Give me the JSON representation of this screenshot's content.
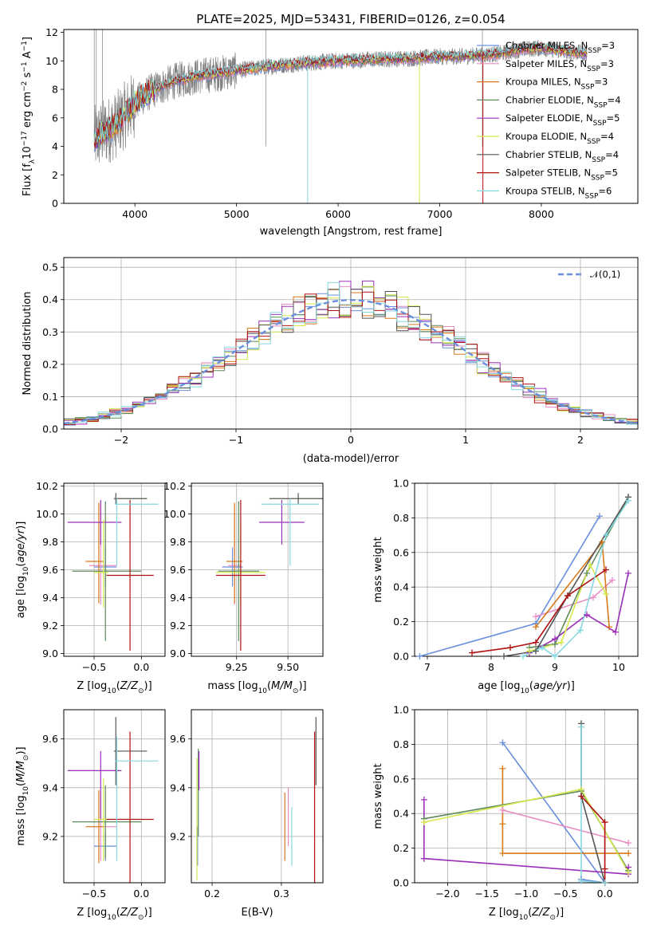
{
  "figure": {
    "title": "PLATE=2025, MJD=53431, FIBERID=0126, z=0.054"
  },
  "models": [
    {
      "name": "Chabrier MILES",
      "nssp": 3,
      "color": "#6a8fdc"
    },
    {
      "name": "Salpeter MILES",
      "nssp": 3,
      "color": "#e88cc4"
    },
    {
      "name": "Kroupa MILES",
      "nssp": 3,
      "color": "#d8791a"
    },
    {
      "name": "Chabrier ELODIE",
      "nssp": 4,
      "color": "#5c8a5c"
    },
    {
      "name": "Salpeter ELODIE",
      "nssp": 5,
      "color": "#9b30b8"
    },
    {
      "name": "Kroupa ELODIE",
      "nssp": 4,
      "color": "#d6e84a"
    },
    {
      "name": "Chabrier STELIB",
      "nssp": 4,
      "color": "#555555"
    },
    {
      "name": "Salpeter STELIB",
      "nssp": 5,
      "color": "#b01010"
    },
    {
      "name": "Kroupa STELIB",
      "nssp": 6,
      "color": "#86d8e0"
    }
  ],
  "chart_data": [
    {
      "id": "spectrum",
      "type": "line",
      "xlabel": "wavelength [Angstrom, rest frame]",
      "ylabel": "Flux [f_λ10^-17 erg cm^-2 s^-1 A^-1]",
      "xlim": [
        3300,
        8950
      ],
      "ylim": [
        0,
        12.2
      ],
      "xticks": [
        4000,
        5000,
        6000,
        7000,
        8000
      ],
      "yticks": [
        0,
        2,
        4,
        6,
        8,
        10,
        12
      ],
      "grid": false,
      "legend_position": "top-right",
      "data_color": "#808080",
      "continuum": {
        "x": [
          3600,
          3700,
          3800,
          3900,
          4000,
          4100,
          4200,
          4300,
          4400,
          4600,
          4800,
          5000,
          5300,
          5600,
          6000,
          6400,
          6800,
          7000,
          7200,
          7400,
          7600,
          7800,
          8000,
          8200,
          8450
        ],
        "y": [
          4.5,
          5.0,
          5.4,
          6.2,
          7.0,
          7.6,
          8.0,
          8.3,
          8.6,
          8.9,
          9.1,
          9.3,
          9.6,
          9.8,
          10.0,
          10.1,
          10.2,
          10.3,
          10.3,
          10.4,
          10.5,
          10.8,
          10.9,
          10.7,
          10.5
        ]
      }
    },
    {
      "id": "residuals",
      "type": "bar",
      "xlabel": "(data-model)/error",
      "ylabel": "Normed distribution",
      "xlim": [
        -2.5,
        2.5
      ],
      "ylim": [
        0,
        0.53
      ],
      "xticks": [
        -2,
        -1,
        0,
        1,
        2
      ],
      "yticks": [
        0.0,
        0.1,
        0.2,
        0.3,
        0.4,
        0.5
      ],
      "grid": true,
      "legend_position": "top-right",
      "reference": {
        "name": "𝒩(0,1)",
        "color": "#6a8fdc",
        "mu": 0,
        "sigma": 1
      }
    },
    {
      "id": "age-vs-Z",
      "type": "scatter",
      "xlabel": "Z [log10(Z/Z⊙)]",
      "ylabel": "age  [log10(age/yr)]",
      "xlim": [
        -0.82,
        0.25
      ],
      "ylim": [
        8.98,
        10.22
      ],
      "xticks": [
        -0.5,
        0.0
      ],
      "yticks": [
        9.0,
        9.2,
        9.4,
        9.6,
        9.8,
        10.0,
        10.2
      ],
      "points": [
        {
          "x": -0.38,
          "xerr": [
            0.12,
            0.12
          ],
          "y": 9.62,
          "yerr": [
            0.14,
            0.14
          ]
        },
        {
          "x": -0.43,
          "xerr": [
            0.12,
            0.17
          ],
          "y": 9.63,
          "yerr": [
            0.28,
            0.43
          ]
        },
        {
          "x": -0.45,
          "xerr": [
            0.14,
            0.05
          ],
          "y": 9.66,
          "yerr": [
            0.3,
            0.42
          ]
        },
        {
          "x": -0.38,
          "xerr": [
            0.35,
            0.38
          ],
          "y": 9.59,
          "yerr": [
            0.5,
            0.5
          ]
        },
        {
          "x": -0.43,
          "xerr": [
            0.35,
            0.22
          ],
          "y": 9.94,
          "yerr": [
            0.16,
            0.16
          ]
        },
        {
          "x": -0.4,
          "xerr": [
            0.1,
            0.05
          ],
          "y": 9.58,
          "yerr": [
            0.25,
            0.38
          ]
        },
        {
          "x": -0.27,
          "xerr": [
            0.02,
            0.33
          ],
          "y": 10.11,
          "yerr": [
            0.04,
            0.04
          ]
        },
        {
          "x": -0.12,
          "xerr": [
            0.25,
            0.25
          ],
          "y": 9.56,
          "yerr": [
            0.54,
            0.54
          ]
        },
        {
          "x": -0.26,
          "xerr": [
            0.02,
            0.44
          ],
          "y": 10.07,
          "yerr": [
            0.44,
            0.04
          ]
        }
      ]
    },
    {
      "id": "age-vs-mass",
      "type": "scatter",
      "xlabel": "mass [log10(M/M⊙)]",
      "ylabel": "",
      "xlim": [
        9.03,
        9.67
      ],
      "ylim": [
        8.98,
        10.22
      ],
      "xticks": [
        9.25,
        9.5
      ],
      "yticks": [
        9.0,
        9.2,
        9.4,
        9.6,
        9.8,
        10.0,
        10.2
      ],
      "points": [
        {
          "x": 9.23,
          "xerr": [
            0.05,
            0.05
          ],
          "y": 9.62,
          "yerr": [
            0.14,
            0.14
          ]
        },
        {
          "x": 9.24,
          "xerr": [
            0.03,
            0.03
          ],
          "y": 9.63,
          "yerr": [
            0.28,
            0.43
          ]
        },
        {
          "x": 9.24,
          "xerr": [
            0.04,
            0.04
          ],
          "y": 9.66,
          "yerr": [
            0.3,
            0.42
          ]
        },
        {
          "x": 9.26,
          "xerr": [
            0.1,
            0.1
          ],
          "y": 9.59,
          "yerr": [
            0.5,
            0.5
          ]
        },
        {
          "x": 9.47,
          "xerr": [
            0.11,
            0.11
          ],
          "y": 9.94,
          "yerr": [
            0.16,
            0.16
          ]
        },
        {
          "x": 9.27,
          "xerr": [
            0.12,
            0.12
          ],
          "y": 9.58,
          "yerr": [
            0.25,
            0.38
          ]
        },
        {
          "x": 9.55,
          "xerr": [
            0.14,
            0.14
          ],
          "y": 10.11,
          "yerr": [
            0.04,
            0.04
          ]
        },
        {
          "x": 9.27,
          "xerr": [
            0.12,
            0.12
          ],
          "y": 9.56,
          "yerr": [
            0.54,
            0.54
          ]
        },
        {
          "x": 9.51,
          "xerr": [
            0.14,
            0.14
          ],
          "y": 10.07,
          "yerr": [
            0.44,
            0.04
          ]
        }
      ]
    },
    {
      "id": "weight-vs-age",
      "type": "line",
      "xlabel": "age  [log10(age/yr)]",
      "ylabel": "mass weight",
      "xlim": [
        6.8,
        10.3
      ],
      "ylim": [
        0,
        1.0
      ],
      "xticks": [
        7,
        8,
        9,
        10
      ],
      "yticks": [
        0.0,
        0.2,
        0.4,
        0.6,
        0.8,
        1.0
      ],
      "grid": true,
      "series": [
        {
          "x": [
            6.88,
            8.7,
            9.7
          ],
          "y": [
            0.0,
            0.19,
            0.81
          ]
        },
        {
          "x": [
            8.7,
            9.6,
            9.9
          ],
          "y": [
            0.23,
            0.34,
            0.44
          ]
        },
        {
          "x": [
            8.7,
            9.74,
            9.85
          ],
          "y": [
            0.17,
            0.66,
            0.17
          ]
        },
        {
          "x": [
            8.6,
            9.0,
            9.5,
            10.15
          ],
          "y": [
            0.05,
            0.07,
            0.48,
            0.92
          ]
        },
        {
          "x": [
            8.6,
            9.0,
            9.5,
            9.95,
            10.15
          ],
          "y": [
            0.02,
            0.1,
            0.24,
            0.14,
            0.48
          ]
        },
        {
          "x": [
            8.6,
            9.1,
            9.55,
            9.8
          ],
          "y": [
            0.03,
            0.08,
            0.53,
            0.36
          ]
        },
        {
          "x": [
            8.2,
            8.7,
            9.2,
            10.15
          ],
          "y": [
            0.0,
            0.03,
            0.35,
            0.92
          ]
        },
        {
          "x": [
            7.7,
            8.3,
            8.7,
            9.2,
            9.8
          ],
          "y": [
            0.02,
            0.05,
            0.08,
            0.35,
            0.5
          ]
        },
        {
          "x": [
            8.5,
            8.8,
            9.0,
            9.4,
            9.8,
            10.15
          ],
          "y": [
            0.0,
            0.05,
            0.0,
            0.15,
            0.7,
            0.9
          ]
        }
      ]
    },
    {
      "id": "mass-vs-Z",
      "type": "scatter",
      "xlabel": "Z [log10(Z/Z⊙)]",
      "ylabel": "mass [log10(M/M⊙)]",
      "xlim": [
        -0.82,
        0.25
      ],
      "ylim": [
        9.01,
        9.72
      ],
      "xticks": [
        -0.5,
        0.0
      ],
      "yticks": [
        9.2,
        9.4,
        9.6
      ],
      "points": [
        {
          "x": -0.38,
          "xerr": [
            0.12,
            0.12
          ],
          "y": 9.16,
          "yerr": [
            0.06,
            0.06
          ]
        },
        {
          "x": -0.43,
          "xerr": [
            0.12,
            0.17
          ],
          "y": 9.24,
          "yerr": [
            0.14,
            0.14
          ]
        },
        {
          "x": -0.45,
          "xerr": [
            0.14,
            0.05
          ],
          "y": 9.24,
          "yerr": [
            0.15,
            0.15
          ]
        },
        {
          "x": -0.38,
          "xerr": [
            0.35,
            0.38
          ],
          "y": 9.26,
          "yerr": [
            0.15,
            0.15
          ]
        },
        {
          "x": -0.43,
          "xerr": [
            0.35,
            0.22
          ],
          "y": 9.47,
          "yerr": [
            0.2,
            0.08
          ]
        },
        {
          "x": -0.4,
          "xerr": [
            0.1,
            0.05
          ],
          "y": 9.27,
          "yerr": [
            0.17,
            0.17
          ]
        },
        {
          "x": -0.27,
          "xerr": [
            0.02,
            0.33
          ],
          "y": 9.55,
          "yerr": [
            0.14,
            0.14
          ]
        },
        {
          "x": -0.12,
          "xerr": [
            0.25,
            0.25
          ],
          "y": 9.27,
          "yerr": [
            0.36,
            0.36
          ]
        },
        {
          "x": -0.26,
          "xerr": [
            0.02,
            0.44
          ],
          "y": 9.51,
          "yerr": [
            0.41,
            0.1
          ]
        }
      ]
    },
    {
      "id": "mass-vs-ebv",
      "type": "scatter",
      "xlabel": "E(B-V)",
      "ylabel": "",
      "xlim": [
        0.17,
        0.36
      ],
      "ylim": [
        9.01,
        9.72
      ],
      "xticks": [
        0.2,
        0.3
      ],
      "yticks": [
        9.2,
        9.4,
        9.6
      ],
      "points": [
        {
          "x": 0.179,
          "y": 9.16,
          "yerr": [
            0.08,
            0.08
          ]
        },
        {
          "x": 0.31,
          "y": 9.28,
          "yerr": [
            0.12,
            0.12
          ]
        },
        {
          "x": 0.305,
          "y": 9.24,
          "yerr": [
            0.14,
            0.14
          ]
        },
        {
          "x": 0.18,
          "y": 9.38,
          "yerr": [
            0.18,
            0.18
          ]
        },
        {
          "x": 0.181,
          "y": 9.47,
          "yerr": [
            0.08,
            0.08
          ]
        },
        {
          "x": 0.178,
          "y": 9.27,
          "yerr": [
            0.25,
            0.25
          ]
        },
        {
          "x": 0.35,
          "y": 9.55,
          "yerr": [
            0.14,
            0.14
          ]
        },
        {
          "x": 0.348,
          "y": 9.27,
          "yerr": [
            0.36,
            0.36
          ]
        },
        {
          "x": 0.315,
          "y": 9.2,
          "yerr": [
            0.12,
            0.12
          ]
        }
      ]
    },
    {
      "id": "weight-vs-Z",
      "type": "line",
      "xlabel": "Z [log10(Z/Z⊙)]",
      "ylabel": "mass weight",
      "xlim": [
        -2.42,
        0.42
      ],
      "ylim": [
        0,
        1.0
      ],
      "xticks": [
        -2.0,
        -1.5,
        -1.0,
        -0.5,
        0.0
      ],
      "yticks": [
        0.0,
        0.2,
        0.4,
        0.6,
        0.8,
        1.0
      ],
      "grid": true,
      "series": [
        {
          "x": [
            -1.3,
            0.0,
            -0.3
          ],
          "y": [
            0.81,
            0.0,
            0.02
          ]
        },
        {
          "x": [
            -1.3,
            0.3
          ],
          "y": [
            0.42,
            0.23
          ]
        },
        {
          "x": [
            -1.3,
            -1.3,
            -1.3,
            0.3
          ],
          "y": [
            0.66,
            0.34,
            0.17,
            0.17
          ]
        },
        {
          "x": [
            -2.3,
            -0.3,
            0.3
          ],
          "y": [
            0.37,
            0.53,
            0.07
          ]
        },
        {
          "x": [
            -2.3,
            -2.3,
            -2.3,
            0.3,
            0.3
          ],
          "y": [
            0.48,
            0.14,
            0.14,
            0.05,
            0.09
          ]
        },
        {
          "x": [
            -2.3,
            -0.3,
            0.3
          ],
          "y": [
            0.35,
            0.54,
            0.06
          ]
        },
        {
          "x": [
            -0.3,
            -0.3,
            0.0
          ],
          "y": [
            0.92,
            0.5,
            0.0
          ]
        },
        {
          "x": [
            -0.3,
            0.0,
            0.0,
            0.0
          ],
          "y": [
            0.5,
            0.35,
            0.08,
            0.0
          ]
        },
        {
          "x": [
            -0.3,
            -0.3,
            0.0
          ],
          "y": [
            0.9,
            0.01,
            0.0
          ]
        }
      ]
    }
  ]
}
